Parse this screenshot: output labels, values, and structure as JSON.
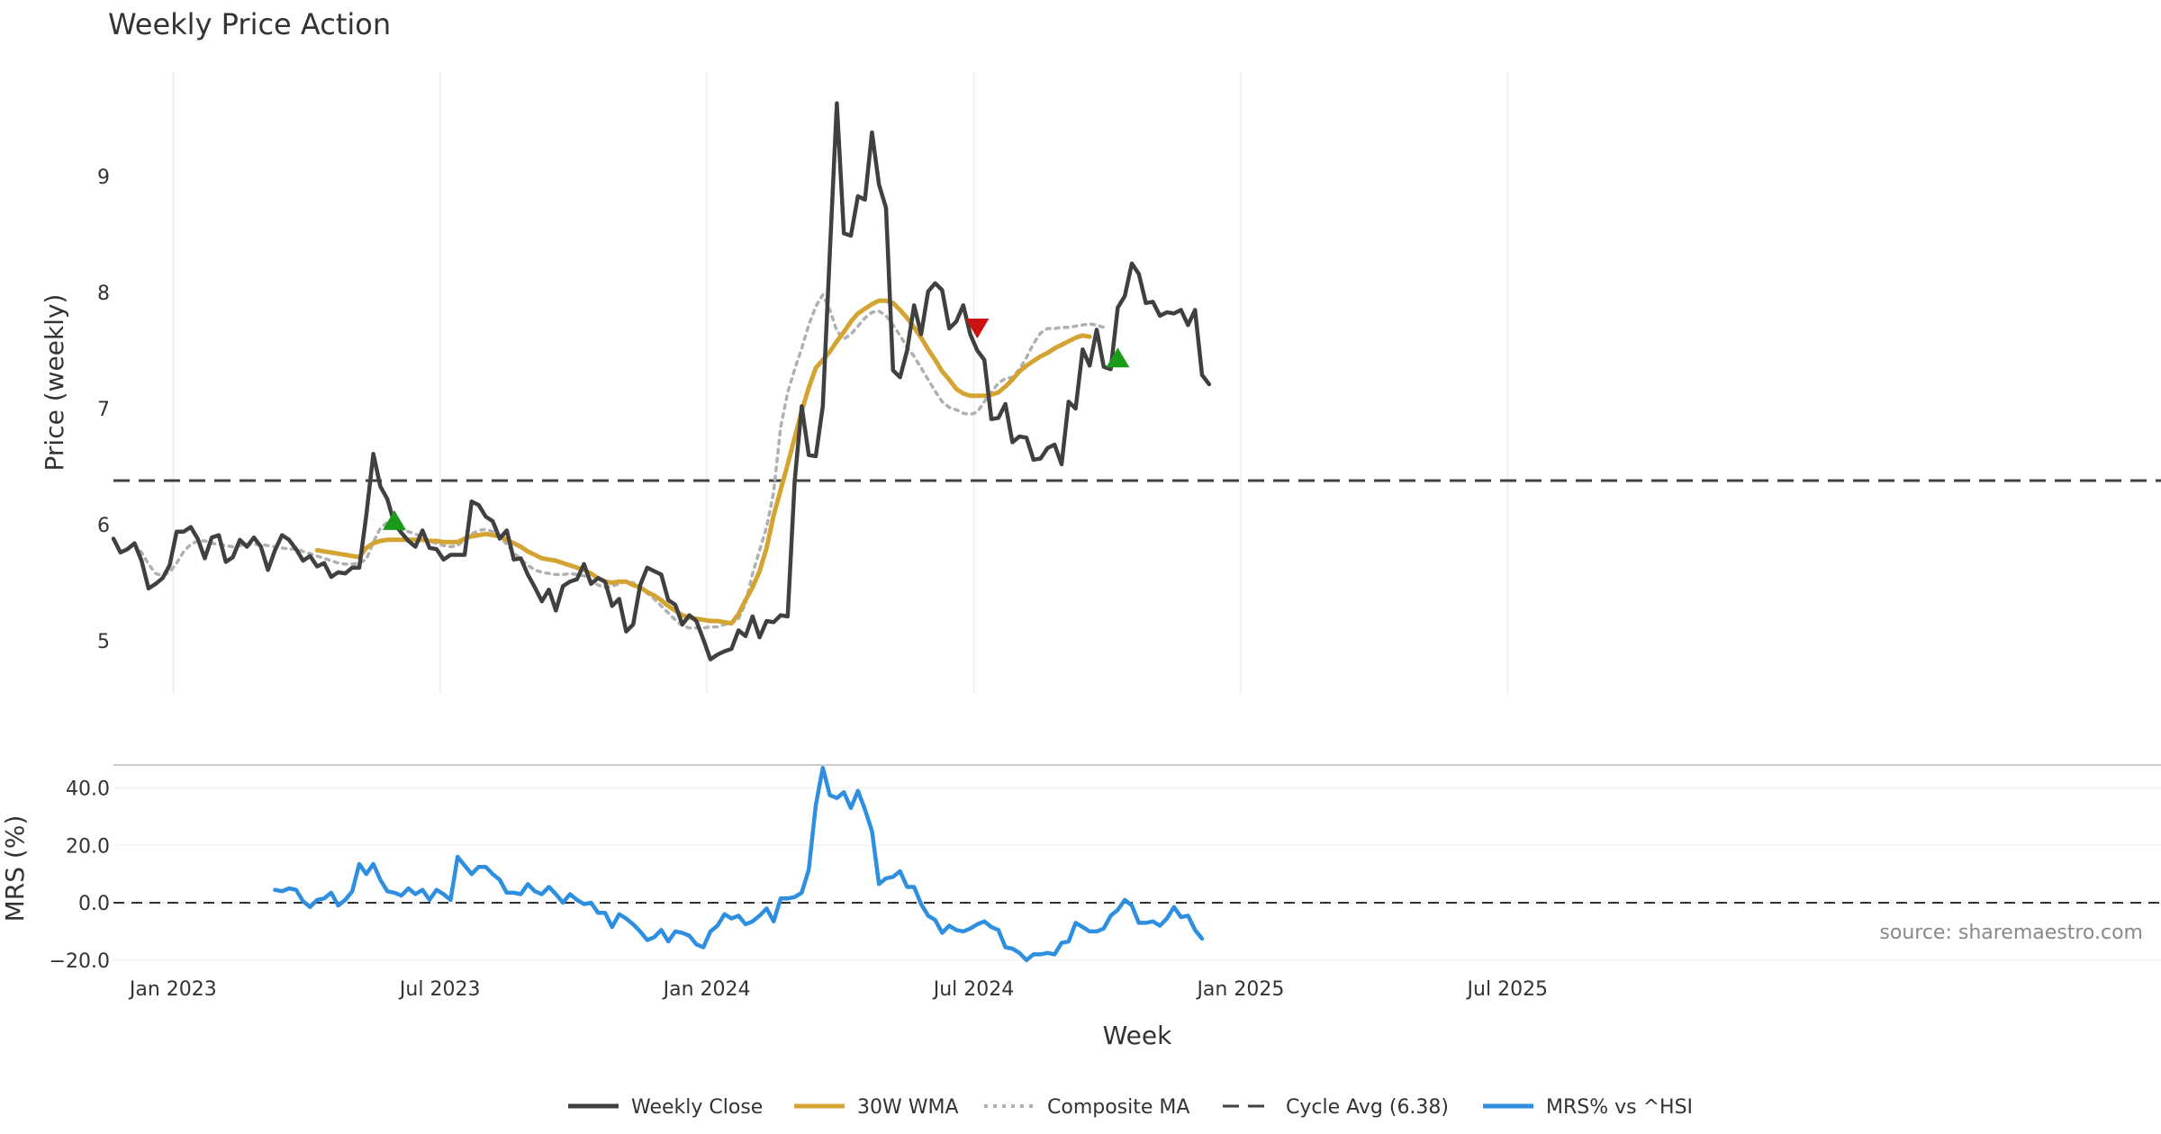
{
  "chart_data": {
    "type": "line",
    "title": "Weekly Price Action",
    "source_note": "source: sharemaestro.com",
    "xlabel": "Week",
    "x_ticks": [
      "Jan 2023",
      "Jul 2023",
      "Jan 2024",
      "Jul 2024",
      "Jan 2025",
      "Jul 2025"
    ],
    "price_panel": {
      "ylabel": "Price (weekly)",
      "ylim": [
        4.55,
        9.9
      ],
      "y_ticks": [
        5,
        6,
        7,
        8,
        9
      ],
      "cycle_avg": 6.38
    },
    "mrs_panel": {
      "ylabel": "MRS (%)",
      "ylim": [
        -21,
        48
      ],
      "y_ticks": [
        "40.0",
        "20.0",
        "0.0",
        "−20.0"
      ],
      "y_tick_values": [
        40,
        20,
        0,
        -20
      ]
    },
    "weeks": 159,
    "series": [
      {
        "name": "Weekly Close",
        "color": "#404040",
        "start_week": 0,
        "values": [
          5.88,
          5.76,
          5.79,
          5.84,
          5.69,
          5.45,
          5.49,
          5.54,
          5.65,
          5.94,
          5.94,
          5.98,
          5.88,
          5.71,
          5.89,
          5.91,
          5.68,
          5.72,
          5.87,
          5.81,
          5.89,
          5.81,
          5.61,
          5.78,
          5.91,
          5.87,
          5.79,
          5.69,
          5.73,
          5.64,
          5.67,
          5.55,
          5.59,
          5.58,
          5.63,
          5.63,
          6.08,
          6.61,
          6.33,
          6.22,
          6.01,
          5.93,
          5.86,
          5.81,
          5.95,
          5.8,
          5.79,
          5.7,
          5.74,
          5.74,
          5.74,
          6.2,
          6.17,
          6.07,
          6.03,
          5.88,
          5.95,
          5.7,
          5.71,
          5.57,
          5.46,
          5.34,
          5.44,
          5.26,
          5.47,
          5.51,
          5.53,
          5.66,
          5.49,
          5.54,
          5.51,
          5.3,
          5.36,
          5.08,
          5.14,
          5.48,
          5.63,
          5.6,
          5.57,
          5.35,
          5.31,
          5.14,
          5.22,
          5.17,
          5.01,
          4.84,
          4.88,
          4.91,
          4.93,
          5.09,
          5.04,
          5.21,
          5.03,
          5.17,
          5.16,
          5.22,
          5.21,
          6.38,
          7.02,
          6.6,
          6.59,
          7.02,
          8.34,
          9.63,
          8.51,
          8.49,
          8.83,
          8.8,
          9.38,
          8.93,
          8.73,
          7.33,
          7.27,
          7.5,
          7.89,
          7.64,
          8.01,
          8.08,
          8.02,
          7.69,
          7.75,
          7.89,
          7.64,
          7.5,
          7.42,
          6.91,
          6.92,
          7.04,
          6.71,
          6.76,
          6.75,
          6.56,
          6.57,
          6.66,
          6.69,
          6.52,
          7.06,
          7.0,
          7.51,
          7.37,
          7.68,
          7.36,
          7.34,
          7.87,
          7.97,
          8.25,
          8.16,
          7.91,
          7.92,
          7.8,
          7.83,
          7.82,
          7.85,
          7.72,
          7.85,
          7.29,
          7.21
        ]
      },
      {
        "name": "30W WMA",
        "color": "#d4a432",
        "start_week": 29,
        "values": [
          5.78,
          5.77,
          5.76,
          5.75,
          5.74,
          5.73,
          5.72,
          5.8,
          5.84,
          5.86,
          5.87,
          5.87,
          5.87,
          5.87,
          5.87,
          5.87,
          5.86,
          5.86,
          5.85,
          5.85,
          5.85,
          5.88,
          5.9,
          5.91,
          5.92,
          5.91,
          5.9,
          5.87,
          5.84,
          5.81,
          5.77,
          5.74,
          5.71,
          5.7,
          5.69,
          5.67,
          5.65,
          5.63,
          5.61,
          5.58,
          5.54,
          5.51,
          5.5,
          5.51,
          5.51,
          5.48,
          5.46,
          5.42,
          5.39,
          5.35,
          5.3,
          5.26,
          5.22,
          5.2,
          5.19,
          5.18,
          5.17,
          5.17,
          5.16,
          5.15,
          5.23,
          5.35,
          5.46,
          5.6,
          5.8,
          6.08,
          6.3,
          6.52,
          6.75,
          6.98,
          7.18,
          7.35,
          7.42,
          7.49,
          7.58,
          7.66,
          7.75,
          7.82,
          7.86,
          7.9,
          7.93,
          7.93,
          7.91,
          7.85,
          7.78,
          7.7,
          7.61,
          7.51,
          7.42,
          7.32,
          7.25,
          7.17,
          7.13,
          7.11,
          7.11,
          7.11,
          7.12,
          7.14,
          7.19,
          7.25,
          7.32,
          7.37,
          7.41,
          7.45,
          7.48,
          7.52,
          7.55,
          7.58,
          7.61,
          7.63,
          7.62
        ]
      },
      {
        "name": "Composite MA",
        "color": "#b0b0b0",
        "dash": "dotted",
        "start_week": 3,
        "values": [
          5.83,
          5.76,
          5.66,
          5.58,
          5.56,
          5.59,
          5.67,
          5.77,
          5.83,
          5.86,
          5.86,
          5.84,
          5.83,
          5.82,
          5.81,
          5.82,
          5.83,
          5.83,
          5.83,
          5.82,
          5.81,
          5.8,
          5.79,
          5.79,
          5.77,
          5.75,
          5.73,
          5.71,
          5.69,
          5.67,
          5.66,
          5.66,
          5.67,
          5.7,
          5.85,
          5.97,
          6.02,
          5.99,
          5.96,
          5.94,
          5.92,
          5.89,
          5.86,
          5.84,
          5.82,
          5.81,
          5.82,
          5.87,
          5.92,
          5.95,
          5.96,
          5.94,
          5.9,
          5.83,
          5.76,
          5.7,
          5.65,
          5.61,
          5.59,
          5.58,
          5.57,
          5.57,
          5.58,
          5.57,
          5.56,
          5.52,
          5.48,
          5.46,
          5.47,
          5.49,
          5.51,
          5.5,
          5.46,
          5.41,
          5.36,
          5.3,
          5.24,
          5.18,
          5.13,
          5.11,
          5.11,
          5.11,
          5.12,
          5.12,
          5.14,
          5.15,
          5.19,
          5.32,
          5.58,
          5.78,
          5.98,
          6.28,
          6.84,
          7.14,
          7.34,
          7.52,
          7.72,
          7.88,
          7.98,
          7.85,
          7.67,
          7.6,
          7.64,
          7.71,
          7.78,
          7.83,
          7.84,
          7.8,
          7.72,
          7.63,
          7.53,
          7.45,
          7.35,
          7.25,
          7.15,
          7.06,
          7.01,
          6.99,
          6.96,
          6.95,
          6.97,
          7.06,
          7.14,
          7.22,
          7.26,
          7.27,
          7.34,
          7.44,
          7.56,
          7.65,
          7.69,
          7.69,
          7.7,
          7.7,
          7.71,
          7.72,
          7.73,
          7.72,
          7.7
        ]
      },
      {
        "name": "MRS% vs ^HSI",
        "color": "#2e8fe0",
        "start_week": 23,
        "values": [
          4.5,
          4.0,
          5.0,
          4.5,
          0.5,
          -1.5,
          1.0,
          1.5,
          3.5,
          -1.0,
          1.0,
          4.0,
          13.5,
          10.0,
          13.5,
          8.0,
          4.0,
          3.5,
          2.5,
          5.0,
          3.0,
          4.5,
          1.0,
          4.5,
          3.0,
          1.0,
          16.0,
          13.0,
          10.0,
          12.5,
          12.5,
          10.0,
          8.0,
          3.5,
          3.5,
          3.0,
          6.5,
          4.0,
          3.0,
          5.5,
          3.0,
          0.0,
          3.0,
          1.0,
          -0.5,
          0.0,
          -3.5,
          -3.5,
          -8.5,
          -4.0,
          -5.5,
          -7.5,
          -10.0,
          -13.0,
          -12.0,
          -9.5,
          -13.5,
          -10.0,
          -10.5,
          -11.5,
          -14.5,
          -15.5,
          -10.0,
          -8.0,
          -4.0,
          -5.5,
          -4.5,
          -7.5,
          -6.5,
          -4.5,
          -2.0,
          -6.5,
          1.5,
          1.5,
          2.0,
          3.5,
          11.5,
          34.0,
          47.0,
          37.5,
          36.5,
          38.5,
          33.0,
          39.0,
          32.5,
          25.0,
          6.5,
          8.5,
          9.0,
          11.0,
          5.5,
          5.5,
          -0.5,
          -4.5,
          -6.0,
          -10.5,
          -8.0,
          -9.5,
          -10.0,
          -9.0,
          -7.5,
          -6.5,
          -8.5,
          -9.5,
          -15.5,
          -16.0,
          -17.5,
          -20.0,
          -18.0,
          -18.0,
          -17.5,
          -18.0,
          -14.0,
          -13.5,
          -7.0,
          -8.5,
          -10.0,
          -10.0,
          -9.0,
          -4.5,
          -2.5,
          1.0,
          -1.0,
          -7.0,
          -7.0,
          -6.5,
          -8.0,
          -5.5,
          -1.5,
          -5.0,
          -4.5,
          -9.5,
          -12.5
        ]
      }
    ],
    "signals": [
      {
        "type": "buy",
        "week": 40,
        "value": 6.04,
        "color": "#1a9c1a"
      },
      {
        "type": "sell",
        "week": 123,
        "value": 7.69,
        "color": "#cc1111"
      },
      {
        "type": "buy",
        "week": 143,
        "value": 7.44,
        "color": "#1a9c1a"
      }
    ],
    "legend": {
      "placement": "bottom-center",
      "items": [
        {
          "label": "Weekly Close",
          "color": "#404040",
          "style": "solid"
        },
        {
          "label": "30W WMA",
          "color": "#d4a432",
          "style": "solid"
        },
        {
          "label": "Composite MA",
          "color": "#b0b0b0",
          "style": "dotted"
        },
        {
          "label": "Cycle Avg (6.38)",
          "color": "#404040",
          "style": "dashed"
        },
        {
          "label": "MRS% vs ^HSI",
          "color": "#2e8fe0",
          "style": "solid"
        }
      ]
    }
  }
}
